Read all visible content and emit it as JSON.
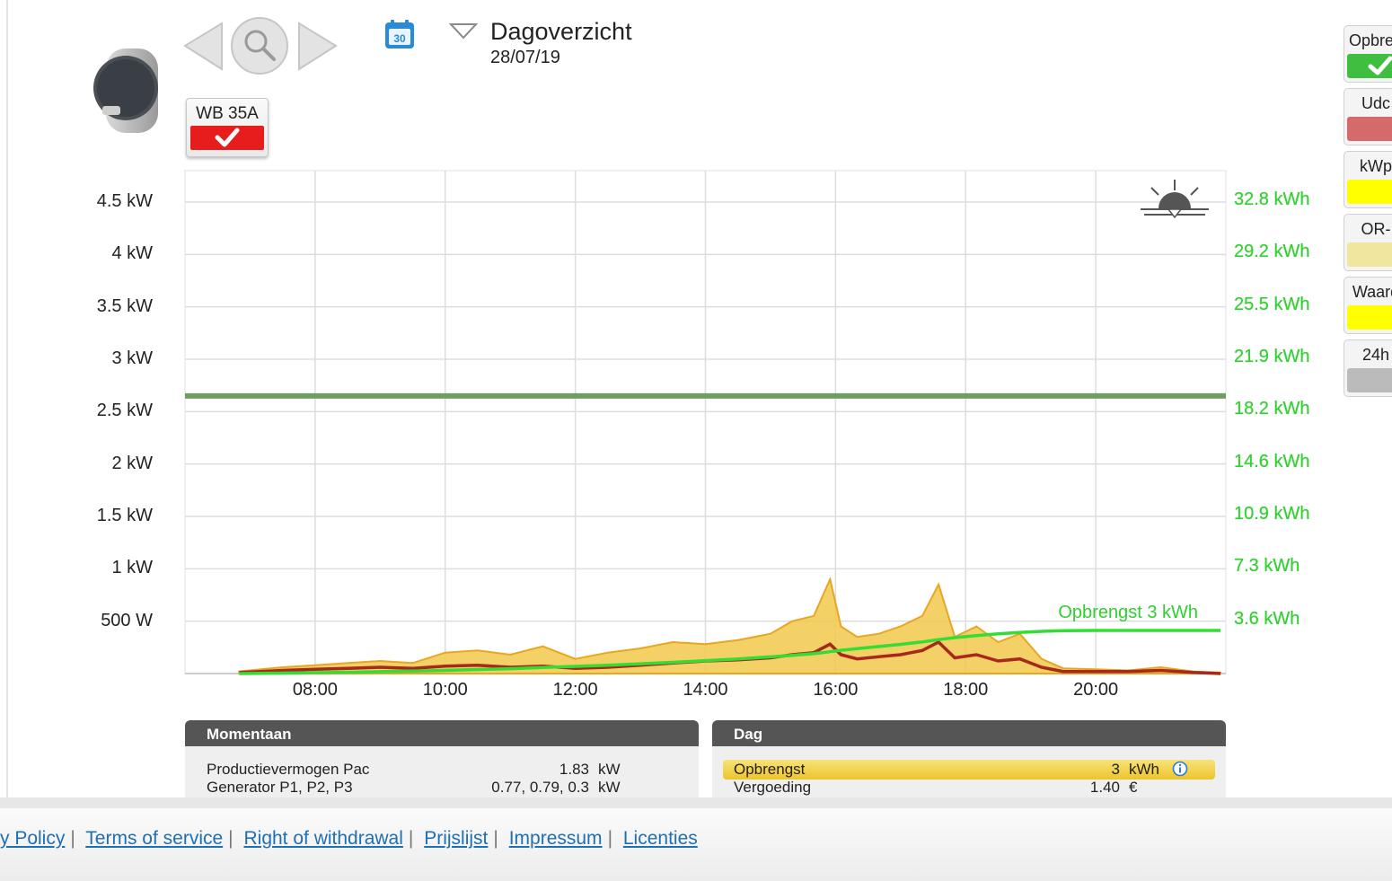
{
  "header": {
    "title": "Dagoverzicht",
    "date": "28/07/19",
    "calendar_day": "30"
  },
  "device_button": {
    "label": "WB 35A",
    "color": "#e71d1d"
  },
  "chart_data": {
    "type": "area",
    "x": [
      "06:50",
      "07:10",
      "07:30",
      "08:00",
      "08:30",
      "09:00",
      "09:30",
      "10:00",
      "10:30",
      "11:00",
      "11:30",
      "12:00",
      "12:30",
      "13:00",
      "13:30",
      "14:00",
      "14:30",
      "15:00",
      "15:20",
      "15:40",
      "15:55",
      "16:05",
      "16:20",
      "16:40",
      "17:00",
      "17:20",
      "17:35",
      "17:50",
      "18:10",
      "18:30",
      "18:50",
      "19:10",
      "19:30",
      "20:00",
      "20:30",
      "21:00",
      "21:30",
      "21:55"
    ],
    "x_ticks": [
      "08:00",
      "10:00",
      "12:00",
      "14:00",
      "16:00",
      "18:00",
      "20:00"
    ],
    "y_ticks": [
      "4.5 kW",
      "4 kW",
      "3.5 kW",
      "3 kW",
      "2.5 kW",
      "2 kW",
      "1.5 kW",
      "1 kW",
      "500 W"
    ],
    "y2_ticks": [
      "32.8 kWh",
      "29.2 kWh",
      "25.5 kWh",
      "21.9 kWh",
      "18.2 kWh",
      "14.6 kWh",
      "10.9 kWh",
      "7.3 kWh",
      "3.6 kWh"
    ],
    "ylim_kw": [
      0,
      4.8
    ],
    "ylim_kwh": [
      0,
      35
    ],
    "series": [
      {
        "name": "",
        "color": "#f2c94c",
        "values": [
          0.02,
          0.04,
          0.06,
          0.08,
          0.1,
          0.12,
          0.1,
          0.2,
          0.22,
          0.18,
          0.26,
          0.14,
          0.2,
          0.24,
          0.3,
          0.28,
          0.32,
          0.38,
          0.5,
          0.55,
          0.9,
          0.45,
          0.35,
          0.38,
          0.45,
          0.55,
          0.85,
          0.35,
          0.45,
          0.3,
          0.38,
          0.14,
          0.05,
          0.04,
          0.03,
          0.06,
          0.02,
          0.01
        ]
      },
      {
        "name": "",
        "color": "#a8281c",
        "values": [
          0.01,
          0.02,
          0.03,
          0.04,
          0.05,
          0.06,
          0.05,
          0.07,
          0.08,
          0.06,
          0.07,
          0.05,
          0.06,
          0.08,
          0.1,
          0.12,
          0.13,
          0.15,
          0.18,
          0.2,
          0.28,
          0.18,
          0.14,
          0.16,
          0.18,
          0.22,
          0.3,
          0.15,
          0.18,
          0.12,
          0.14,
          0.06,
          0.02,
          0.02,
          0.02,
          0.03,
          0.01,
          0.0
        ]
      },
      {
        "name": "Opbrengst 3 kWh",
        "color": "#33dd33",
        "values_kwh": [
          0.0,
          0.01,
          0.03,
          0.06,
          0.09,
          0.13,
          0.17,
          0.22,
          0.28,
          0.34,
          0.42,
          0.5,
          0.58,
          0.68,
          0.78,
          0.9,
          1.02,
          1.16,
          1.27,
          1.38,
          1.52,
          1.62,
          1.74,
          1.88,
          2.03,
          2.2,
          2.36,
          2.5,
          2.64,
          2.76,
          2.86,
          2.94,
          2.98,
          3.0,
          3.0,
          3.0,
          3.0,
          3.0
        ]
      }
    ],
    "reference_line_kw": 2.65,
    "series_label": "Opbrengst 3 kWh"
  },
  "panels": {
    "momentaan": {
      "title": "Momentaan",
      "rows": [
        {
          "label": "Productievermogen Pac",
          "value": "1.83",
          "unit": "kW"
        },
        {
          "label": "Generator P1, P2, P3",
          "value": "0.77, 0.79, 0.3",
          "unit": "kW"
        }
      ]
    },
    "dag": {
      "title": "Dag",
      "rows": [
        {
          "label": "Opbrengst",
          "value": "3",
          "unit": "kWh"
        },
        {
          "label": "Vergoeding",
          "value": "1.40",
          "unit": "€"
        }
      ]
    }
  },
  "legend": [
    {
      "label": "Opbren",
      "color": "#3fbf3f",
      "checked": true
    },
    {
      "label": "Udc",
      "color": "#d46a6a"
    },
    {
      "label": "kWp",
      "color": "#ffff00"
    },
    {
      "label": "OR-",
      "color": "#f0e6a0"
    },
    {
      "label": "Waard",
      "color": "#ffff00"
    },
    {
      "label": "24h",
      "color": "#bbbbbb"
    }
  ],
  "footer_links": [
    "y Policy",
    "Terms of service",
    "Right of withdrawal",
    "Prijslijst",
    "Impressum",
    "Licenties"
  ]
}
